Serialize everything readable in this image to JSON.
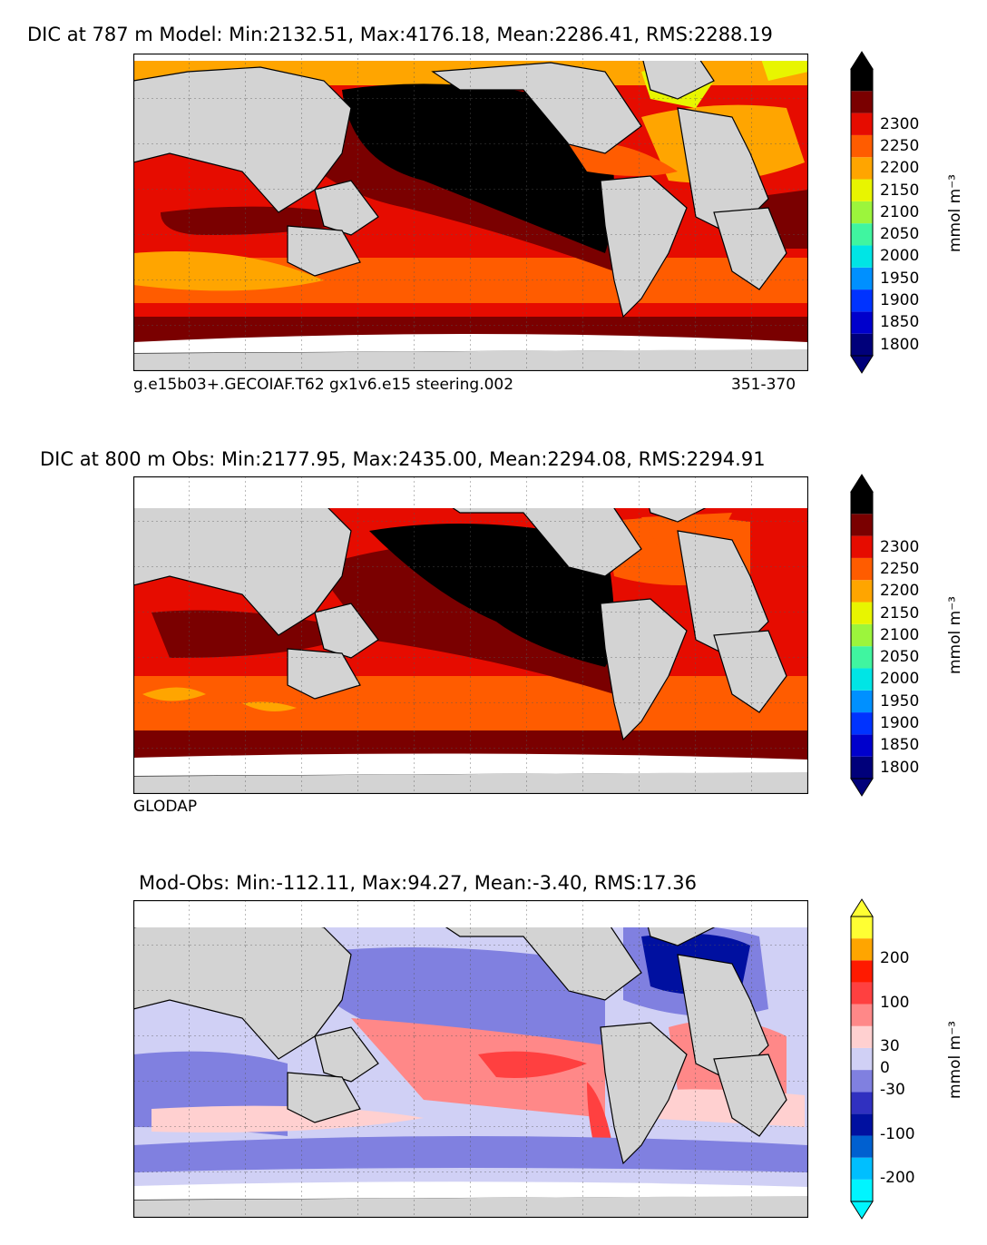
{
  "colors": {
    "land": "#d3d3d3",
    "ice": "#ffffff",
    "abs_levels": [
      "#00007a",
      "#0000cc",
      "#0033ff",
      "#0090ff",
      "#00e5e5",
      "#40f5a0",
      "#9cf53c",
      "#e8f500",
      "#ffa500",
      "#ff5c00",
      "#e60c00",
      "#7a0000",
      "#000000"
    ],
    "diff_levels": [
      "#00f5ff",
      "#00bfff",
      "#0060d0",
      "#0010a0",
      "#3030c0",
      "#8080e0",
      "#d0d0f5",
      "#ffd0d0",
      "#ff8888",
      "#ff4040",
      "#ff1a00",
      "#ffa500",
      "#ffff33"
    ]
  },
  "panels": [
    {
      "title": "DIC at 787 m Model: Min:2132.51, Max:4176.18, Mean:2286.41, RMS:2288.19",
      "caption_left": "g.e15b03+.GECOIAF.T62 gx1v6.e15 steering.002",
      "caption_right": "351-370",
      "colorbar_ticks": [
        "2300",
        "2250",
        "2200",
        "2150",
        "2100",
        "2050",
        "2000",
        "1950",
        "1900",
        "1850",
        "1800"
      ],
      "colorbar_unit": "mmol m⁻³"
    },
    {
      "title": "DIC at 800 m Obs: Min:2177.95, Max:2435.00, Mean:2294.08, RMS:2294.91",
      "caption_left": "GLODAP",
      "caption_right": "",
      "colorbar_ticks": [
        "2300",
        "2250",
        "2200",
        "2150",
        "2100",
        "2050",
        "2000",
        "1950",
        "1900",
        "1850",
        "1800"
      ],
      "colorbar_unit": "mmol m⁻³"
    },
    {
      "title": "Mod-Obs: Min:-112.11, Max:94.27, Mean:-3.40, RMS:17.36",
      "caption_left": "",
      "caption_right": "",
      "colorbar_ticks": [
        "200",
        "100",
        "30",
        "0",
        "-30",
        "-100",
        "-200"
      ],
      "colorbar_unit": "mmol m⁻³"
    }
  ],
  "chart_data": [
    {
      "type": "heatmap",
      "title": "DIC at 787 m Model: Min:2132.51, Max:4176.18, Mean:2286.41, RMS:2288.19",
      "variable": "DIC",
      "depth_m": 787,
      "stats": {
        "min": 2132.51,
        "max": 4176.18,
        "mean": 2286.41,
        "rms": 2288.19
      },
      "colorbar_levels": [
        1800,
        1850,
        1900,
        1950,
        2000,
        2050,
        2100,
        2150,
        2200,
        2250,
        2300
      ],
      "units": "mmol m⁻³",
      "annotation_left": "g.e15b03+.GECOIAF.T62 gx1v6.e15 steering.002",
      "annotation_right": "351-370",
      "extend": "both"
    },
    {
      "type": "heatmap",
      "title": "DIC at 800 m Obs: Min:2177.95, Max:2435.00, Mean:2294.08, RMS:2294.91",
      "variable": "DIC",
      "depth_m": 800,
      "stats": {
        "min": 2177.95,
        "max": 2435.0,
        "mean": 2294.08,
        "rms": 2294.91
      },
      "colorbar_levels": [
        1800,
        1850,
        1900,
        1950,
        2000,
        2050,
        2100,
        2150,
        2200,
        2250,
        2300
      ],
      "units": "mmol m⁻³",
      "annotation_left": "GLODAP",
      "extend": "both"
    },
    {
      "type": "heatmap",
      "title": "Mod-Obs: Min:-112.11, Max:94.27, Mean:-3.40, RMS:17.36",
      "variable": "DIC difference",
      "stats": {
        "min": -112.11,
        "max": 94.27,
        "mean": -3.4,
        "rms": 17.36
      },
      "colorbar_levels": [
        -200,
        -100,
        -30,
        0,
        30,
        100,
        200
      ],
      "units": "mmol m⁻³",
      "extend": "both"
    }
  ]
}
